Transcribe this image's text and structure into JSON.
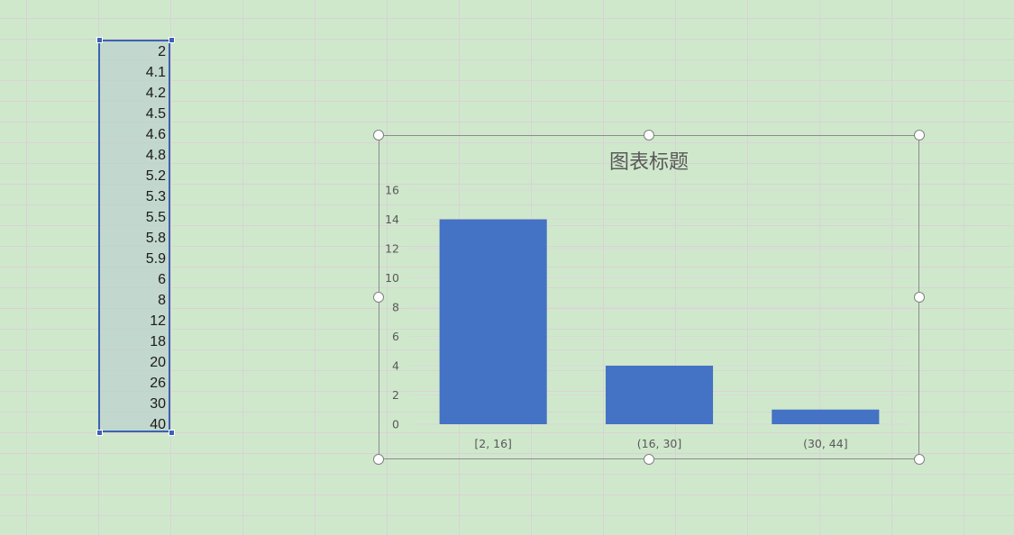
{
  "sheet": {
    "column_values": [
      "2",
      "4.1",
      "4.2",
      "4.5",
      "4.6",
      "4.8",
      "5.2",
      "5.3",
      "5.5",
      "5.8",
      "5.9",
      "6",
      "8",
      "12",
      "18",
      "20",
      "26",
      "30",
      "40"
    ]
  },
  "colors": {
    "sheet_background": "#cfe8cc",
    "selection_border": "#3b62b2",
    "bar": "#4472c4"
  },
  "chart_data": {
    "type": "bar",
    "title": "图表标题",
    "categories": [
      "[2, 16]",
      "(16, 30]",
      "(30, 44]"
    ],
    "values": [
      14,
      4,
      1
    ],
    "xlabel": "",
    "ylabel": "",
    "ylim": [
      0,
      16
    ],
    "yticks": [
      0,
      2,
      4,
      6,
      8,
      10,
      12,
      14,
      16
    ],
    "grid": true,
    "legend": "none"
  }
}
